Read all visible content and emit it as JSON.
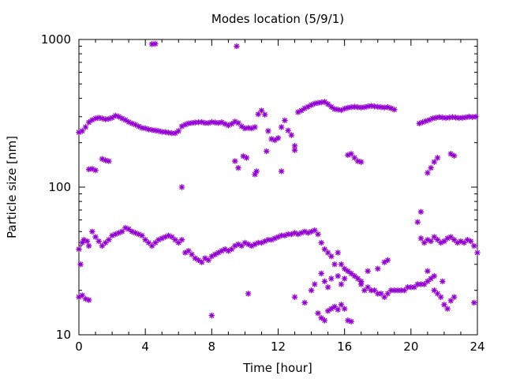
{
  "chart_data": {
    "type": "scatter",
    "title": "Modes location (5/9/1)",
    "xlabel": "Time [hour]",
    "ylabel": "Particle size [nm]",
    "xlim": [
      0,
      24
    ],
    "ylim": [
      10,
      1000
    ],
    "y_scale": "log",
    "x_ticks": [
      0,
      4,
      8,
      12,
      16,
      20,
      24
    ],
    "x_tick_labels": [
      "0",
      "4",
      "8",
      "12",
      "16",
      "20",
      "24"
    ],
    "y_ticks": [
      10,
      100,
      1000
    ],
    "y_tick_labels": [
      "10",
      "100",
      "1000"
    ],
    "grid": false,
    "legend": "none",
    "marker_color": "#9400d3",
    "marker": "asterisk",
    "series": [
      {
        "values": [
          [
            0.0,
            235
          ],
          [
            0.2,
            240
          ],
          [
            0.4,
            255
          ],
          [
            0.6,
            275
          ],
          [
            0.8,
            285
          ],
          [
            1.0,
            292
          ],
          [
            1.2,
            295
          ],
          [
            1.4,
            292
          ],
          [
            1.6,
            288
          ],
          [
            1.8,
            290
          ],
          [
            2.0,
            295
          ],
          [
            2.2,
            305
          ],
          [
            2.4,
            300
          ],
          [
            2.6,
            292
          ],
          [
            2.8,
            285
          ],
          [
            3.0,
            276
          ],
          [
            3.2,
            270
          ],
          [
            3.4,
            265
          ],
          [
            3.6,
            258
          ],
          [
            3.8,
            252
          ],
          [
            4.0,
            250
          ],
          [
            4.2,
            246
          ],
          [
            4.4,
            244
          ],
          [
            4.6,
            242
          ],
          [
            4.8,
            240
          ],
          [
            5.0,
            237
          ],
          [
            5.2,
            236
          ],
          [
            5.4,
            234
          ],
          [
            5.6,
            232
          ],
          [
            5.8,
            232
          ],
          [
            6.0,
            240
          ],
          [
            6.2,
            258
          ],
          [
            6.4,
            265
          ],
          [
            6.6,
            270
          ],
          [
            6.8,
            272
          ],
          [
            7.0,
            274
          ],
          [
            7.2,
            275
          ],
          [
            7.4,
            276
          ],
          [
            7.6,
            272
          ],
          [
            7.8,
            272
          ],
          [
            8.0,
            276
          ],
          [
            8.2,
            274
          ],
          [
            8.4,
            272
          ],
          [
            8.6,
            275
          ],
          [
            8.8,
            268
          ],
          [
            9.0,
            262
          ],
          [
            9.2,
            268
          ],
          [
            9.4,
            278
          ],
          [
            9.6,
            272
          ],
          [
            9.8,
            258
          ],
          [
            10.0,
            250
          ],
          [
            10.2,
            252
          ],
          [
            10.4,
            250
          ],
          [
            10.6,
            255
          ],
          [
            10.8,
            312
          ],
          [
            11.0,
            330
          ],
          [
            11.2,
            310
          ],
          [
            11.4,
            240
          ],
          [
            11.6,
            212
          ],
          [
            11.8,
            208
          ],
          [
            12.0,
            215
          ],
          [
            12.2,
            255
          ],
          [
            12.4,
            283
          ],
          [
            12.6,
            242
          ],
          [
            12.8,
            225
          ],
          [
            13.0,
            190
          ],
          [
            13.2,
            322
          ],
          [
            13.4,
            330
          ],
          [
            13.6,
            342
          ],
          [
            13.8,
            350
          ],
          [
            14.0,
            360
          ],
          [
            14.2,
            368
          ],
          [
            14.4,
            372
          ],
          [
            14.6,
            375
          ],
          [
            14.8,
            378
          ],
          [
            15.0,
            365
          ],
          [
            15.2,
            350
          ],
          [
            15.4,
            338
          ],
          [
            15.6,
            335
          ],
          [
            15.8,
            332
          ],
          [
            16.0,
            340
          ],
          [
            16.2,
            345
          ],
          [
            16.4,
            348
          ],
          [
            16.6,
            350
          ],
          [
            16.8,
            348
          ],
          [
            17.0,
            346
          ],
          [
            17.2,
            348
          ],
          [
            17.4,
            352
          ],
          [
            17.6,
            355
          ],
          [
            17.8,
            352
          ],
          [
            18.0,
            350
          ],
          [
            18.2,
            348
          ],
          [
            18.4,
            346
          ],
          [
            18.6,
            348
          ],
          [
            18.8,
            342
          ],
          [
            19.0,
            335
          ],
          [
            20.5,
            270
          ],
          [
            20.7,
            275
          ],
          [
            20.9,
            280
          ],
          [
            21.1,
            285
          ],
          [
            21.3,
            292
          ],
          [
            21.5,
            295
          ],
          [
            21.7,
            298
          ],
          [
            21.9,
            296
          ],
          [
            22.1,
            294
          ],
          [
            22.3,
            296
          ],
          [
            22.5,
            298
          ],
          [
            22.7,
            296
          ],
          [
            22.9,
            294
          ],
          [
            23.1,
            295
          ],
          [
            23.3,
            297
          ],
          [
            23.5,
            300
          ],
          [
            23.7,
            298
          ],
          [
            23.9,
            300
          ]
        ]
      },
      {
        "values": [
          [
            0.6,
            132
          ],
          [
            0.8,
            133
          ],
          [
            1.0,
            130
          ],
          [
            1.4,
            155
          ],
          [
            1.6,
            152
          ],
          [
            1.8,
            150
          ],
          [
            4.4,
            930
          ],
          [
            4.6,
            935
          ],
          [
            6.2,
            100
          ],
          [
            9.4,
            150
          ],
          [
            9.6,
            135
          ],
          [
            9.9,
            162
          ],
          [
            10.1,
            158
          ],
          [
            9.5,
            900
          ],
          [
            10.6,
            122
          ],
          [
            10.7,
            128
          ],
          [
            11.3,
            175
          ],
          [
            12.2,
            128
          ],
          [
            13.0,
            178
          ],
          [
            16.2,
            165
          ],
          [
            16.4,
            168
          ],
          [
            16.6,
            158
          ],
          [
            16.8,
            150
          ],
          [
            17.0,
            148
          ],
          [
            21.0,
            125
          ],
          [
            21.2,
            135
          ],
          [
            21.4,
            148
          ],
          [
            21.6,
            158
          ],
          [
            22.4,
            168
          ],
          [
            22.6,
            163
          ]
        ]
      },
      {
        "values": [
          [
            0.0,
            38
          ],
          [
            0.1,
            30
          ],
          [
            0.2,
            42
          ],
          [
            0.3,
            44
          ],
          [
            0.5,
            43
          ],
          [
            0.6,
            40
          ],
          [
            0.8,
            50
          ],
          [
            1.0,
            46
          ],
          [
            1.2,
            43
          ],
          [
            1.4,
            40
          ],
          [
            1.6,
            42
          ],
          [
            1.8,
            44
          ],
          [
            2.0,
            47
          ],
          [
            2.2,
            48
          ],
          [
            2.4,
            49
          ],
          [
            2.6,
            50
          ],
          [
            2.8,
            53
          ],
          [
            3.0,
            52
          ],
          [
            3.2,
            50
          ],
          [
            3.4,
            49
          ],
          [
            3.6,
            48
          ],
          [
            3.8,
            47
          ],
          [
            4.0,
            44
          ],
          [
            4.2,
            42
          ],
          [
            4.4,
            40
          ],
          [
            4.6,
            42
          ],
          [
            4.8,
            44
          ],
          [
            5.0,
            45
          ],
          [
            5.2,
            46
          ],
          [
            5.4,
            47
          ],
          [
            5.6,
            46
          ],
          [
            5.8,
            44
          ],
          [
            6.0,
            42
          ],
          [
            6.2,
            44
          ],
          [
            6.4,
            36
          ],
          [
            6.6,
            37
          ],
          [
            6.8,
            35
          ],
          [
            7.0,
            33
          ],
          [
            7.2,
            32
          ],
          [
            7.4,
            31
          ],
          [
            7.6,
            33
          ],
          [
            7.8,
            32
          ],
          [
            8.0,
            34
          ],
          [
            8.2,
            35
          ],
          [
            8.4,
            36
          ],
          [
            8.6,
            37
          ],
          [
            8.8,
            38
          ],
          [
            9.0,
            37
          ],
          [
            9.2,
            38
          ],
          [
            9.4,
            40
          ],
          [
            9.6,
            41
          ],
          [
            9.8,
            40
          ],
          [
            10.0,
            42
          ],
          [
            10.2,
            41
          ],
          [
            10.4,
            40
          ],
          [
            10.6,
            41
          ],
          [
            10.8,
            42
          ],
          [
            11.0,
            42
          ],
          [
            11.2,
            43
          ],
          [
            11.4,
            44
          ],
          [
            11.6,
            44
          ],
          [
            11.8,
            45
          ],
          [
            12.0,
            46
          ],
          [
            12.2,
            47
          ],
          [
            12.4,
            47
          ],
          [
            12.6,
            48
          ],
          [
            12.8,
            48
          ],
          [
            13.0,
            49
          ],
          [
            13.2,
            48
          ],
          [
            13.4,
            49
          ],
          [
            13.6,
            50
          ],
          [
            13.8,
            49
          ],
          [
            14.0,
            50
          ],
          [
            14.2,
            51
          ],
          [
            14.4,
            48
          ],
          [
            14.6,
            42
          ],
          [
            14.8,
            38
          ],
          [
            15.0,
            36
          ],
          [
            15.2,
            34
          ],
          [
            15.4,
            30
          ],
          [
            15.6,
            36
          ],
          [
            15.8,
            30
          ],
          [
            16.0,
            28
          ],
          [
            16.2,
            27
          ],
          [
            16.4,
            26
          ],
          [
            16.6,
            25
          ],
          [
            16.8,
            24
          ],
          [
            17.0,
            22
          ],
          [
            17.2,
            20
          ],
          [
            17.4,
            21
          ],
          [
            17.6,
            20
          ],
          [
            17.8,
            20
          ],
          [
            18.0,
            19
          ],
          [
            18.2,
            19
          ],
          [
            18.4,
            18
          ],
          [
            18.6,
            19
          ],
          [
            18.8,
            20
          ],
          [
            19.0,
            20
          ],
          [
            19.2,
            20
          ],
          [
            19.4,
            20
          ],
          [
            19.6,
            20
          ],
          [
            19.8,
            21
          ],
          [
            20.0,
            21
          ],
          [
            20.2,
            21
          ],
          [
            20.4,
            22
          ],
          [
            20.6,
            22
          ],
          [
            20.8,
            22
          ],
          [
            21.0,
            23
          ],
          [
            21.2,
            24
          ],
          [
            21.4,
            25
          ],
          [
            20.6,
            45
          ],
          [
            20.8,
            42
          ],
          [
            21.0,
            44
          ],
          [
            21.2,
            43
          ],
          [
            21.4,
            46
          ],
          [
            21.6,
            44
          ],
          [
            21.8,
            42
          ],
          [
            22.0,
            43
          ],
          [
            22.2,
            45
          ],
          [
            22.4,
            46
          ],
          [
            22.6,
            44
          ],
          [
            22.8,
            42
          ],
          [
            23.0,
            43
          ],
          [
            23.2,
            42
          ],
          [
            23.4,
            44
          ],
          [
            23.6,
            43
          ],
          [
            23.8,
            40
          ],
          [
            24.0,
            36
          ]
        ]
      },
      {
        "values": [
          [
            0.0,
            18
          ],
          [
            0.2,
            18.5
          ],
          [
            0.4,
            17.5
          ],
          [
            0.6,
            17.2
          ],
          [
            8.0,
            13.5
          ],
          [
            10.2,
            19
          ],
          [
            13.0,
            18
          ],
          [
            13.6,
            16.5
          ],
          [
            14.0,
            20
          ],
          [
            14.2,
            22
          ],
          [
            14.4,
            14
          ],
          [
            14.6,
            13
          ],
          [
            14.8,
            12.5
          ],
          [
            15.0,
            14.5
          ],
          [
            15.2,
            15
          ],
          [
            15.4,
            15.5
          ],
          [
            15.6,
            14.8
          ],
          [
            15.8,
            16
          ],
          [
            16.0,
            15
          ],
          [
            16.2,
            12.5
          ],
          [
            16.4,
            12.3
          ],
          [
            14.6,
            26
          ],
          [
            14.8,
            23
          ],
          [
            15.0,
            21
          ],
          [
            15.2,
            24
          ],
          [
            15.6,
            25
          ],
          [
            15.8,
            22
          ],
          [
            16.0,
            24
          ],
          [
            17.0,
            23
          ],
          [
            17.4,
            27
          ],
          [
            18.0,
            28
          ],
          [
            18.4,
            31
          ],
          [
            18.6,
            32
          ],
          [
            20.4,
            58
          ],
          [
            20.6,
            68
          ],
          [
            21.0,
            27
          ],
          [
            21.4,
            20
          ],
          [
            21.6,
            19
          ],
          [
            21.8,
            18
          ],
          [
            22.0,
            16
          ],
          [
            22.2,
            15
          ],
          [
            22.4,
            17
          ],
          [
            22.6,
            18
          ],
          [
            23.8,
            16.5
          ],
          [
            21.9,
            23
          ]
        ]
      }
    ]
  }
}
